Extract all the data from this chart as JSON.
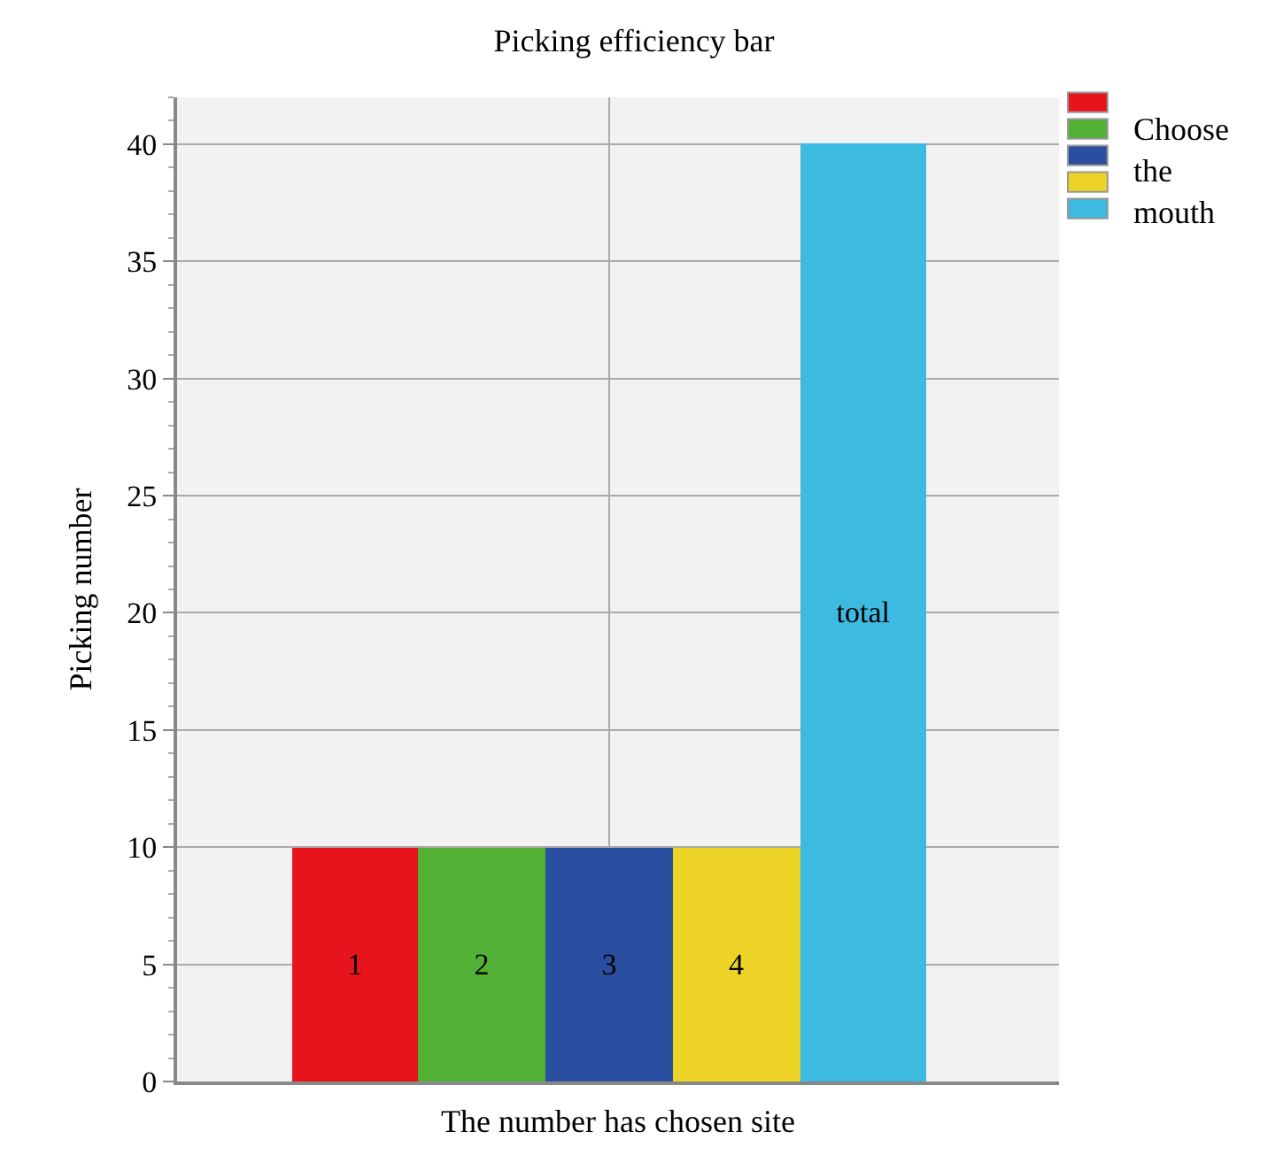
{
  "chart_data": {
    "type": "bar",
    "title": "Picking efficiency bar",
    "xlabel": "The number has chosen site",
    "ylabel": "Picking number",
    "categories": [
      "1",
      "2",
      "3",
      "4",
      "total"
    ],
    "values": [
      10,
      10,
      10,
      10,
      40
    ],
    "colors": [
      "#e8141c",
      "#52b035",
      "#2a4fa0",
      "#ecd326",
      "#3cbadf"
    ],
    "annotations": [
      "Choose the mouth"
    ],
    "ylim": [
      0,
      42
    ],
    "yticks": [
      0,
      5,
      10,
      15,
      20,
      25,
      30,
      35,
      40
    ],
    "grid": true,
    "tick_labels": "y"
  }
}
